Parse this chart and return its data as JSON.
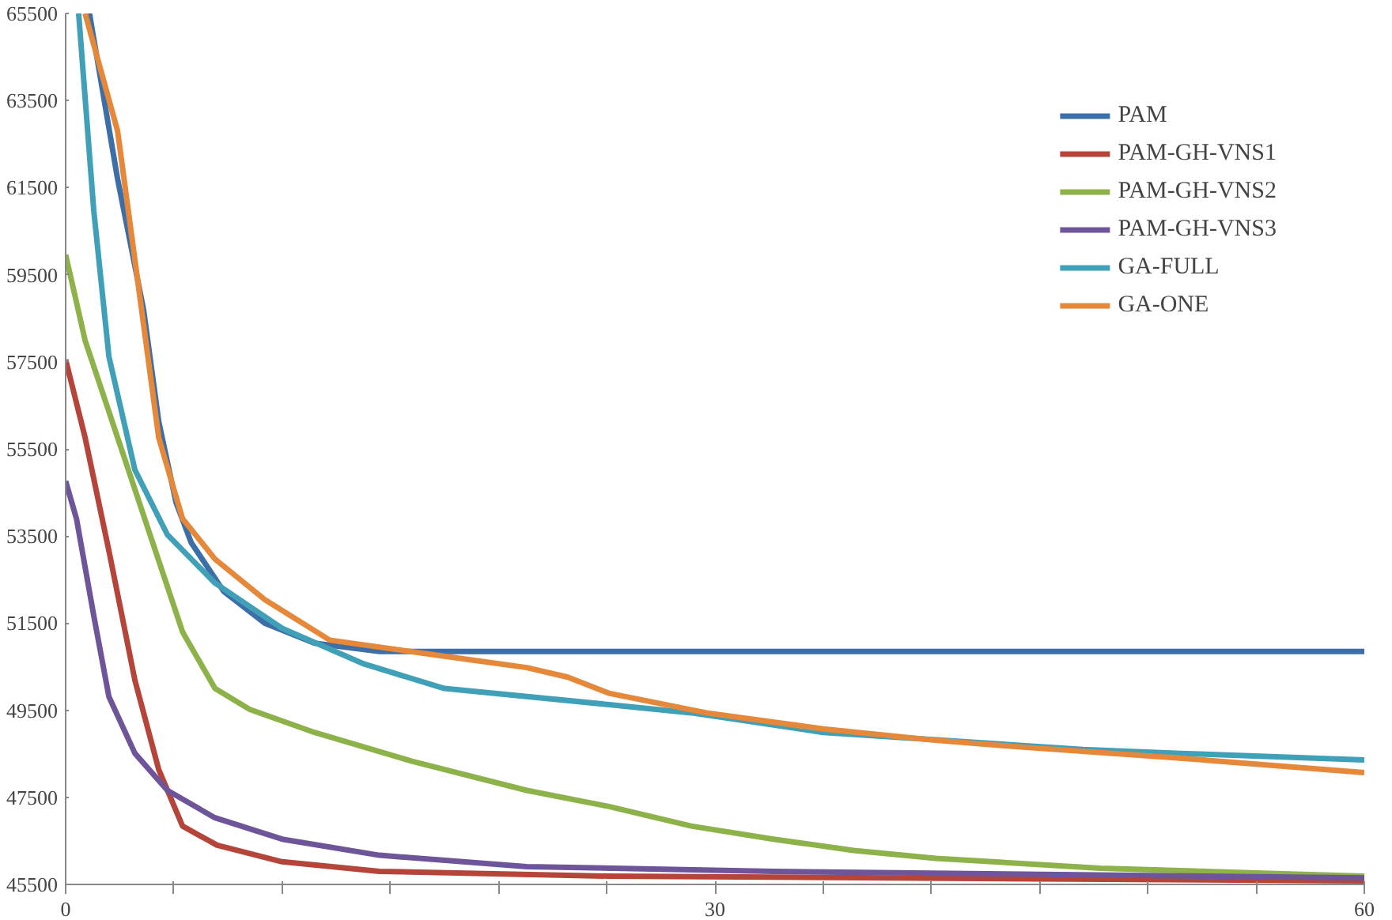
{
  "chart_data": {
    "type": "line",
    "xlim": [
      0,
      60
    ],
    "ylim": [
      45500,
      65500
    ],
    "xticks": [
      0,
      {
        "value": 5,
        "label": null
      },
      {
        "value": 10,
        "label": null
      },
      {
        "value": 15,
        "label": null
      },
      {
        "value": 20,
        "label": null
      },
      {
        "value": 25,
        "label": null
      },
      30,
      {
        "value": 35,
        "label": null
      },
      {
        "value": 40,
        "label": null
      },
      {
        "value": 45,
        "label": null
      },
      {
        "value": 50,
        "label": null
      },
      {
        "value": 55,
        "label": null
      },
      60
    ],
    "yticks": [
      45500,
      47500,
      49500,
      51500,
      53500,
      55500,
      57500,
      59500,
      61500,
      63500,
      65500
    ],
    "grid": false,
    "legend": "top right",
    "marker": "none",
    "line_style": "solid",
    "series": [
      {
        "name": "PAM",
        "color": "#3c6ea8",
        "x": [
          1.1,
          2.4,
          3.6,
          4.3,
          5.1,
          5.8,
          7.3,
          9.2,
          11.5,
          14.5,
          60
        ],
        "values": [
          65500,
          61700,
          58700,
          56130,
          54270,
          53350,
          52230,
          51500,
          51040,
          50850,
          50850
        ]
      },
      {
        "name": "PAM-GH-VNS1",
        "color": "#b5443a",
        "x": [
          0,
          0.9,
          2.0,
          3.2,
          4.3,
          5.4,
          7.0,
          10.0,
          14.5,
          25.1,
          60
        ],
        "values": [
          57550,
          55760,
          53160,
          50190,
          48140,
          46840,
          46400,
          46020,
          45800,
          45690,
          45580
        ]
      },
      {
        "name": "PAM-GH-VNS2",
        "color": "#8eb24a",
        "x": [
          0,
          0.9,
          2.4,
          3.9,
          5.4,
          6.9,
          8.5,
          11.5,
          16.0,
          21.3,
          25.1,
          28.9,
          32.7,
          36.4,
          40.2,
          47.8,
          55.3,
          60
        ],
        "values": [
          59960,
          57990,
          55760,
          53530,
          51300,
          50000,
          49520,
          48990,
          48330,
          47660,
          47290,
          46840,
          46540,
          46280,
          46100,
          45870,
          45760,
          45690
        ]
      },
      {
        "name": "PAM-GH-VNS3",
        "color": "#6e559a",
        "x": [
          0,
          0.5,
          1.3,
          2.0,
          3.2,
          4.7,
          6.9,
          10.0,
          14.5,
          21.3,
          32.7,
          60
        ],
        "values": [
          54760,
          53900,
          51670,
          49810,
          48510,
          47660,
          47030,
          46540,
          46170,
          45910,
          45800,
          45650
        ]
      },
      {
        "name": "GA-FULL",
        "color": "#3fa0b8",
        "x": [
          0.6,
          1.3,
          2.0,
          3.2,
          4.7,
          6.9,
          10.0,
          13.8,
          17.5,
          25.1,
          28.9,
          35.0,
          47.0,
          51.5,
          60
        ],
        "values": [
          65500,
          60970,
          57620,
          55020,
          53530,
          52420,
          51380,
          50560,
          50000,
          49630,
          49440,
          48990,
          48600,
          48510,
          48360
        ]
      },
      {
        "name": "GA-ONE",
        "color": "#e5883a",
        "x": [
          0.9,
          2.4,
          3.6,
          4.3,
          5.4,
          6.9,
          9.2,
          12.2,
          17.5,
          21.3,
          23.2,
          25.1,
          29.6,
          35.0,
          40.2,
          44.0,
          51.5,
          60
        ],
        "values": [
          65500,
          62800,
          58360,
          55760,
          53900,
          52970,
          52040,
          51110,
          50740,
          50480,
          50260,
          49890,
          49440,
          49070,
          48810,
          48660,
          48400,
          48070
        ]
      }
    ]
  }
}
